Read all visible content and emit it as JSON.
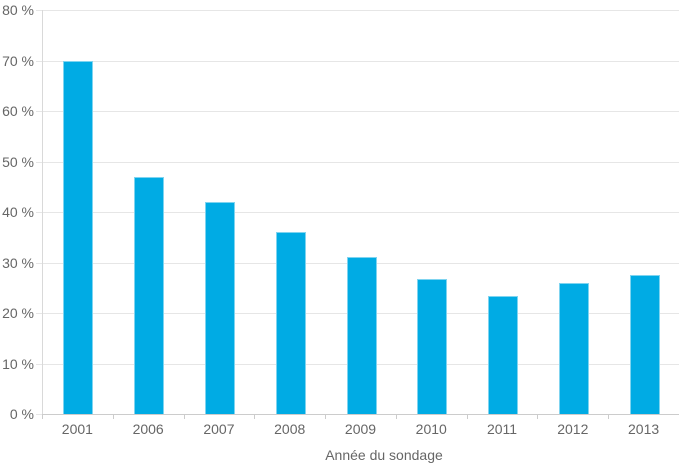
{
  "chart_data": {
    "type": "bar",
    "title": "",
    "categories": [
      "2001",
      "2006",
      "2007",
      "2008",
      "2009",
      "2010",
      "2011",
      "2012",
      "2013"
    ],
    "values": [
      70,
      47,
      42,
      36,
      31,
      26.7,
      23.3,
      26,
      27.5
    ],
    "xlabel": "Année du sondage",
    "ylabel": "",
    "ylim": [
      0,
      80
    ],
    "ytick_step": 10,
    "ytick_labels": [
      "0 %",
      "10 %",
      "20 %",
      "30 %",
      "40 %",
      "50 %",
      "60 %",
      "70 %",
      "80 %"
    ],
    "grid": true,
    "legend_position": "none",
    "colors": {
      "bar": "#00abe4",
      "bar_edge": "#7fd4f0",
      "grid": "#e6e6e6",
      "axis": "#cccccc",
      "plot_border": "#d9d9d9",
      "text": "#666666",
      "background": "#ffffff"
    }
  }
}
